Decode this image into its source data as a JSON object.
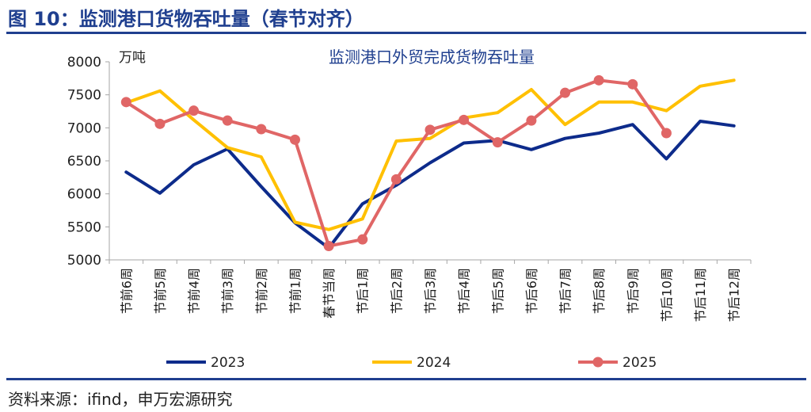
{
  "figure": {
    "title": "图 10：监测港口货物吞吐量（春节对齐）",
    "source": "资料来源：ifind，申万宏源研究"
  },
  "chart_data": {
    "type": "line",
    "title": "监测港口外贸完成货物吞吐量",
    "unit": "万吨",
    "categories": [
      "节前6周",
      "节前5周",
      "节前4周",
      "节前3周",
      "节前2周",
      "节前1周",
      "春节当周",
      "节后1周",
      "节后2周",
      "节后3周",
      "节后4周",
      "节后5周",
      "节后6周",
      "节后7周",
      "节后8周",
      "节后9周",
      "节后10周",
      "节后11周",
      "节后12周"
    ],
    "ylim": [
      5000,
      8000
    ],
    "yticks": [
      5000,
      5500,
      6000,
      6500,
      7000,
      7500,
      8000
    ],
    "legend_position": "bottom",
    "series": [
      {
        "name": "2023",
        "color": "#0D2B8B",
        "marker": false,
        "values": [
          6330,
          6010,
          6440,
          6680,
          6110,
          5560,
          5180,
          5850,
          6130,
          6470,
          6770,
          6810,
          6670,
          6840,
          6920,
          7050,
          6530,
          7100,
          7030
        ]
      },
      {
        "name": "2024",
        "color": "#FFC000",
        "marker": false,
        "values": [
          7380,
          7560,
          7120,
          6700,
          6560,
          5570,
          5460,
          5620,
          6800,
          6840,
          7150,
          7230,
          7580,
          7050,
          7390,
          7390,
          7260,
          7630,
          7720
        ]
      },
      {
        "name": "2025",
        "color": "#E06666",
        "marker": true,
        "values": [
          7390,
          7060,
          7260,
          7110,
          6980,
          6820,
          5210,
          5310,
          6220,
          6970,
          7120,
          6780,
          7110,
          7530,
          7720,
          7660,
          6920,
          null,
          null
        ]
      }
    ]
  }
}
